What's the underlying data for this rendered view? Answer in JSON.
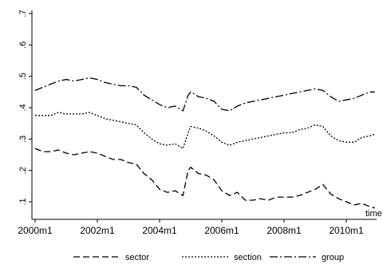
{
  "chart_data": {
    "type": "line",
    "xlabel": "time",
    "ylabel": "",
    "xlim": [
      2000.0,
      2010.917
    ],
    "ylim": [
      0.08,
      0.7
    ],
    "x_ticks": [
      {
        "value": 2000,
        "label": "2000m1"
      },
      {
        "value": 2002,
        "label": "2002m1"
      },
      {
        "value": 2004,
        "label": "2004m1"
      },
      {
        "value": 2006,
        "label": "2006m1"
      },
      {
        "value": 2008,
        "label": "2008m1"
      },
      {
        "value": 2010,
        "label": "2010m1"
      }
    ],
    "y_ticks": [
      {
        "value": 0.1,
        "label": ".1"
      },
      {
        "value": 0.2,
        "label": ".2"
      },
      {
        "value": 0.3,
        "label": ".3"
      },
      {
        "value": 0.4,
        "label": ".4"
      },
      {
        "value": 0.5,
        "label": ".5"
      },
      {
        "value": 0.6,
        "label": ".6"
      },
      {
        "value": 0.7,
        "label": ".7"
      }
    ],
    "grid": false,
    "legend_position": "bottom",
    "series": [
      {
        "name": "sector",
        "dash": "8,4",
        "points": [
          [
            2000.0,
            0.27
          ],
          [
            2000.25,
            0.26
          ],
          [
            2000.5,
            0.26
          ],
          [
            2000.75,
            0.265
          ],
          [
            2001.0,
            0.255
          ],
          [
            2001.25,
            0.25
          ],
          [
            2001.5,
            0.255
          ],
          [
            2001.75,
            0.26
          ],
          [
            2002.0,
            0.255
          ],
          [
            2002.25,
            0.245
          ],
          [
            2002.5,
            0.235
          ],
          [
            2002.75,
            0.235
          ],
          [
            2003.0,
            0.225
          ],
          [
            2003.25,
            0.22
          ],
          [
            2003.5,
            0.19
          ],
          [
            2003.75,
            0.17
          ],
          [
            2004.0,
            0.14
          ],
          [
            2004.25,
            0.13
          ],
          [
            2004.5,
            0.135
          ],
          [
            2004.75,
            0.12
          ],
          [
            2004.917,
            0.2
          ],
          [
            2005.0,
            0.21
          ],
          [
            2005.25,
            0.19
          ],
          [
            2005.5,
            0.185
          ],
          [
            2005.75,
            0.17
          ],
          [
            2006.0,
            0.135
          ],
          [
            2006.25,
            0.12
          ],
          [
            2006.5,
            0.13
          ],
          [
            2006.75,
            0.105
          ],
          [
            2007.0,
            0.105
          ],
          [
            2007.25,
            0.11
          ],
          [
            2007.5,
            0.105
          ],
          [
            2007.75,
            0.115
          ],
          [
            2008.0,
            0.115
          ],
          [
            2008.25,
            0.115
          ],
          [
            2008.5,
            0.12
          ],
          [
            2008.75,
            0.13
          ],
          [
            2009.0,
            0.14
          ],
          [
            2009.25,
            0.155
          ],
          [
            2009.5,
            0.125
          ],
          [
            2009.75,
            0.11
          ],
          [
            2010.0,
            0.1
          ],
          [
            2010.25,
            0.09
          ],
          [
            2010.5,
            0.095
          ],
          [
            2010.75,
            0.085
          ],
          [
            2010.917,
            0.08
          ]
        ]
      },
      {
        "name": "section",
        "dash": "2,2",
        "points": [
          [
            2000.0,
            0.375
          ],
          [
            2000.25,
            0.375
          ],
          [
            2000.5,
            0.375
          ],
          [
            2000.75,
            0.385
          ],
          [
            2001.0,
            0.38
          ],
          [
            2001.25,
            0.38
          ],
          [
            2001.5,
            0.38
          ],
          [
            2001.75,
            0.385
          ],
          [
            2002.0,
            0.375
          ],
          [
            2002.25,
            0.365
          ],
          [
            2002.5,
            0.36
          ],
          [
            2002.75,
            0.355
          ],
          [
            2003.0,
            0.35
          ],
          [
            2003.25,
            0.345
          ],
          [
            2003.5,
            0.32
          ],
          [
            2003.75,
            0.3
          ],
          [
            2004.0,
            0.285
          ],
          [
            2004.25,
            0.28
          ],
          [
            2004.5,
            0.285
          ],
          [
            2004.75,
            0.27
          ],
          [
            2004.917,
            0.32
          ],
          [
            2005.0,
            0.34
          ],
          [
            2005.25,
            0.335
          ],
          [
            2005.5,
            0.325
          ],
          [
            2005.75,
            0.31
          ],
          [
            2006.0,
            0.29
          ],
          [
            2006.25,
            0.28
          ],
          [
            2006.5,
            0.29
          ],
          [
            2006.75,
            0.295
          ],
          [
            2007.0,
            0.3
          ],
          [
            2007.25,
            0.305
          ],
          [
            2007.5,
            0.31
          ],
          [
            2007.75,
            0.315
          ],
          [
            2008.0,
            0.32
          ],
          [
            2008.25,
            0.32
          ],
          [
            2008.5,
            0.33
          ],
          [
            2008.75,
            0.335
          ],
          [
            2009.0,
            0.345
          ],
          [
            2009.25,
            0.34
          ],
          [
            2009.5,
            0.31
          ],
          [
            2009.75,
            0.295
          ],
          [
            2010.0,
            0.29
          ],
          [
            2010.25,
            0.29
          ],
          [
            2010.5,
            0.305
          ],
          [
            2010.75,
            0.31
          ],
          [
            2010.917,
            0.315
          ]
        ]
      },
      {
        "name": "group",
        "dash": "10,3,2,3",
        "points": [
          [
            2000.0,
            0.455
          ],
          [
            2000.25,
            0.465
          ],
          [
            2000.5,
            0.475
          ],
          [
            2000.75,
            0.485
          ],
          [
            2001.0,
            0.49
          ],
          [
            2001.25,
            0.485
          ],
          [
            2001.5,
            0.49
          ],
          [
            2001.75,
            0.495
          ],
          [
            2002.0,
            0.49
          ],
          [
            2002.25,
            0.48
          ],
          [
            2002.5,
            0.475
          ],
          [
            2002.75,
            0.47
          ],
          [
            2003.0,
            0.47
          ],
          [
            2003.25,
            0.465
          ],
          [
            2003.5,
            0.44
          ],
          [
            2003.75,
            0.425
          ],
          [
            2004.0,
            0.41
          ],
          [
            2004.25,
            0.4
          ],
          [
            2004.5,
            0.405
          ],
          [
            2004.75,
            0.39
          ],
          [
            2004.917,
            0.44
          ],
          [
            2005.0,
            0.45
          ],
          [
            2005.25,
            0.435
          ],
          [
            2005.5,
            0.43
          ],
          [
            2005.75,
            0.42
          ],
          [
            2006.0,
            0.395
          ],
          [
            2006.25,
            0.39
          ],
          [
            2006.5,
            0.405
          ],
          [
            2006.75,
            0.415
          ],
          [
            2007.0,
            0.42
          ],
          [
            2007.25,
            0.425
          ],
          [
            2007.5,
            0.43
          ],
          [
            2007.75,
            0.435
          ],
          [
            2008.0,
            0.44
          ],
          [
            2008.25,
            0.445
          ],
          [
            2008.5,
            0.45
          ],
          [
            2008.75,
            0.455
          ],
          [
            2009.0,
            0.46
          ],
          [
            2009.25,
            0.455
          ],
          [
            2009.5,
            0.435
          ],
          [
            2009.75,
            0.42
          ],
          [
            2010.0,
            0.425
          ],
          [
            2010.25,
            0.43
          ],
          [
            2010.5,
            0.44
          ],
          [
            2010.75,
            0.45
          ],
          [
            2010.917,
            0.45
          ]
        ]
      }
    ]
  }
}
